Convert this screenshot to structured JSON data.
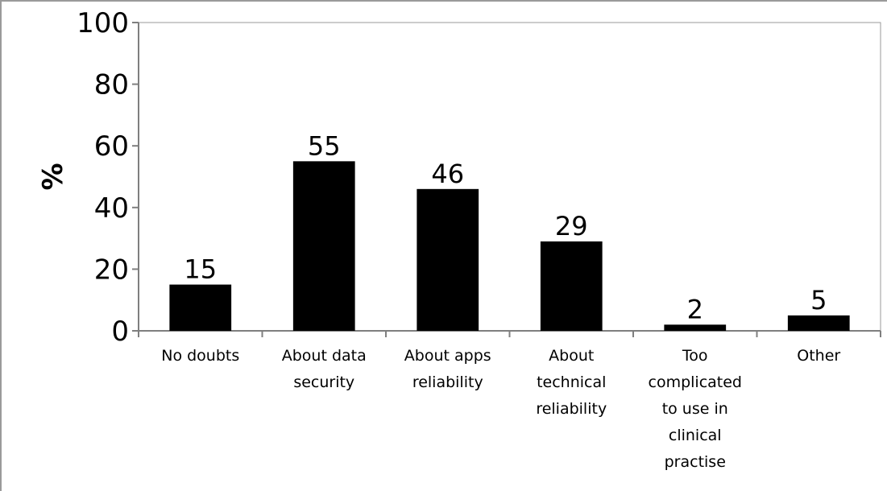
{
  "chart_data": {
    "type": "bar",
    "title": "",
    "xlabel": "",
    "ylabel": "%",
    "ylim": [
      0,
      100
    ],
    "yticks": [
      0,
      20,
      40,
      60,
      80,
      100
    ],
    "categories": [
      [
        "No doubts"
      ],
      [
        "About data",
        "security"
      ],
      [
        "About apps",
        "reliability"
      ],
      [
        "About",
        "technical",
        "reliability"
      ],
      [
        "Too",
        "complicated",
        "to use in",
        "clinical",
        "practise"
      ],
      [
        "Other"
      ]
    ],
    "values": [
      15,
      55,
      46,
      29,
      2,
      5
    ],
    "data_labels": [
      "15",
      "55",
      "46",
      "29",
      "2",
      "5"
    ],
    "bar_color": "#000000",
    "grid": false,
    "legend": "none"
  }
}
